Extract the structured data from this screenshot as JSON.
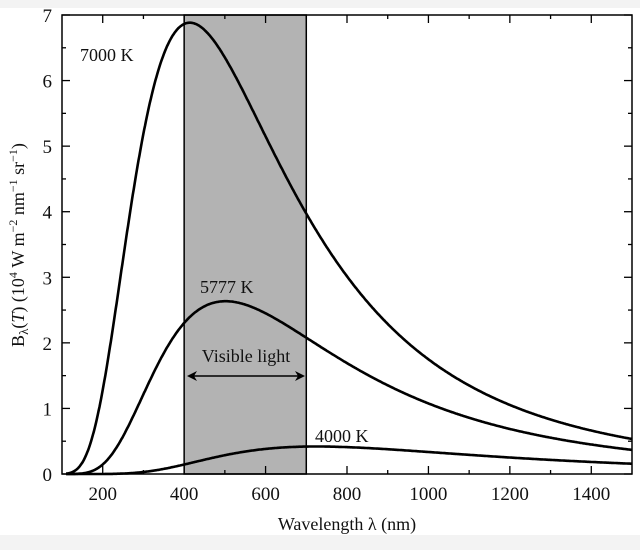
{
  "chart_data": {
    "type": "line",
    "title": "",
    "xlabel": "Wavelength λ (nm)",
    "ylabel_parts": {
      "b": "B",
      "lambda": "λ",
      "open": "(",
      "t": "T",
      "close": ")",
      "units_a": " (10",
      "exp4": "4",
      "units_b": " W m",
      "exp_m2": "−2",
      "units_c": " nm",
      "exp_m1a": "−1",
      "units_d": " sr",
      "exp_m1b": "−1",
      "units_e": ")"
    },
    "xlim": [
      100,
      1500
    ],
    "ylim": [
      0,
      7
    ],
    "xticks": [
      200,
      400,
      600,
      800,
      1000,
      1200,
      1400
    ],
    "yticks": [
      0,
      1,
      2,
      3,
      4,
      5,
      6,
      7
    ],
    "x": [
      100,
      200,
      300,
      400,
      500,
      600,
      700,
      800,
      900,
      1000,
      1100,
      1200,
      1300,
      1400,
      1500
    ],
    "series": [
      {
        "name": "7000 K",
        "temperature_K": 7000,
        "values": [
          0.0,
          1.28,
          5.19,
          6.86,
          6.35,
          5.15,
          3.97,
          3.01,
          2.29,
          1.75,
          1.35,
          1.05,
          0.83,
          0.66,
          0.53
        ]
      },
      {
        "name": "5777 K",
        "temperature_K": 5777,
        "values": [
          0.0,
          0.145,
          1.22,
          2.3,
          2.64,
          2.45,
          2.08,
          1.69,
          1.35,
          1.08,
          0.86,
          0.69,
          0.55,
          0.45,
          0.37
        ]
      },
      {
        "name": "4000 K",
        "temperature_K": 4000,
        "values": [
          0.0,
          0.0,
          0.03,
          0.145,
          0.287,
          0.382,
          0.418,
          0.41,
          0.378,
          0.335,
          0.292,
          0.251,
          0.215,
          0.184,
          0.157
        ]
      }
    ],
    "band": {
      "label": "Visible light",
      "from": 400,
      "to": 700,
      "color": "#b3b3b3"
    },
    "grid": false,
    "legend": "none"
  }
}
